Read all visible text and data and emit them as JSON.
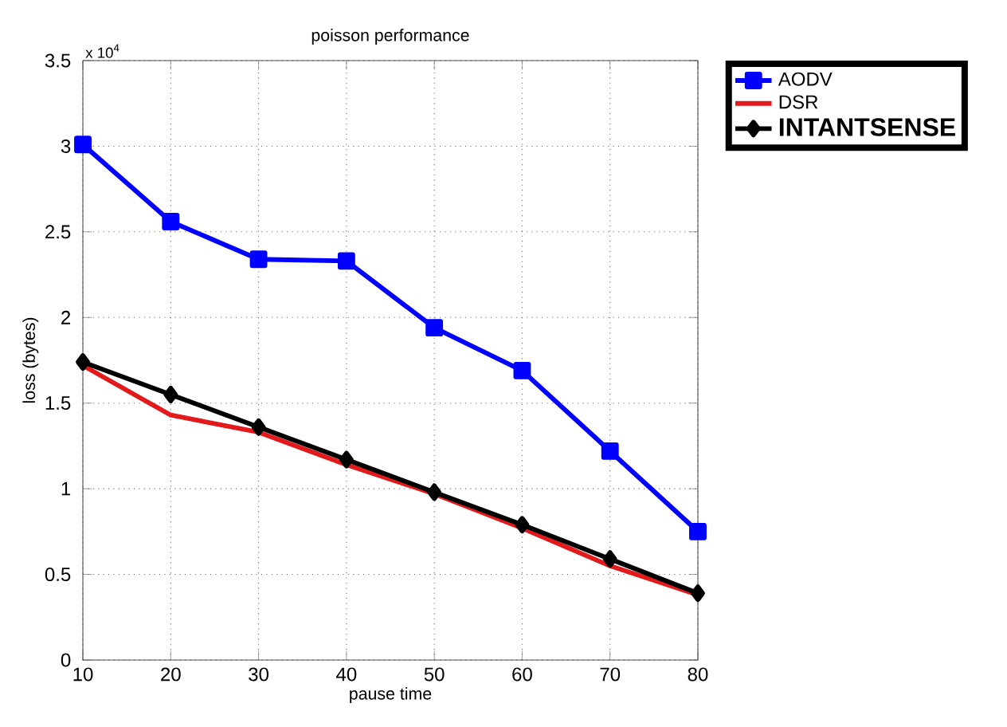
{
  "chart_data": {
    "type": "line",
    "title": "poisson performance",
    "xlabel": "pause time",
    "ylabel": "loss (bytes)",
    "annotations": [
      "x 10$^{4}$"
    ],
    "x": [
      10,
      20,
      30,
      40,
      50,
      60,
      70,
      80
    ],
    "series": [
      {
        "name": "AODV",
        "color": "#0000ff",
        "marker": "square",
        "values": [
          3.01,
          2.56,
          2.34,
          2.33,
          1.94,
          1.69,
          1.22,
          0.75
        ]
      },
      {
        "name": "DSR",
        "color": "#e31a1c",
        "marker": "none",
        "values": [
          1.72,
          1.43,
          1.33,
          1.14,
          0.97,
          0.77,
          0.55,
          0.38
        ]
      },
      {
        "name": "INTANTSENSE",
        "color": "#000000",
        "marker": "diamond",
        "values": [
          1.74,
          1.55,
          1.36,
          1.17,
          0.98,
          0.79,
          0.59,
          0.39
        ]
      }
    ],
    "xlim": [
      10,
      80
    ],
    "ylim": [
      0,
      3.5
    ],
    "xticks": [
      10,
      20,
      30,
      40,
      50,
      60,
      70,
      80
    ],
    "yticks": [
      0,
      0.5,
      1,
      1.5,
      2,
      2.5,
      3,
      3.5
    ],
    "grid": true,
    "legend": "top right",
    "line_style": "solid"
  }
}
